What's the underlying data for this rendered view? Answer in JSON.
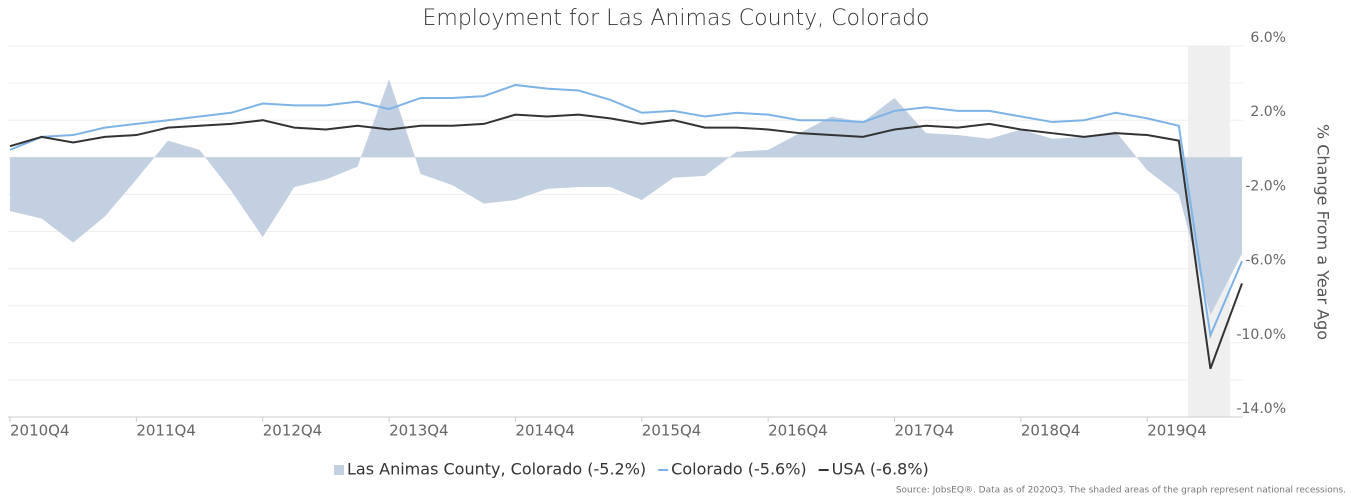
{
  "chart_data": {
    "type": "line",
    "title": "Employment for Las Animas County, Colorado",
    "y_axis_label": "% Change From a Year Ago",
    "source": "Source: JobsEQ®. Data as of 2020Q3. The shaded areas of the graph represent national recessions.",
    "categories": [
      "2010Q4",
      null,
      null,
      null,
      "2011Q4",
      null,
      null,
      null,
      "2012Q4",
      null,
      null,
      null,
      "2013Q4",
      null,
      null,
      null,
      "2014Q4",
      null,
      null,
      null,
      "2015Q4",
      null,
      null,
      null,
      "2016Q4",
      null,
      null,
      null,
      "2017Q4",
      null,
      null,
      null,
      "2018Q4",
      null,
      null,
      null,
      "2019Q4",
      null,
      null,
      null
    ],
    "ylim": [
      -14,
      6
    ],
    "yticks": [
      {
        "value": 6,
        "label": "6.0%"
      },
      {
        "value": 2,
        "label": "2.0%"
      },
      {
        "value": -2,
        "label": "-2.0%"
      },
      {
        "value": -6,
        "label": "-6.0%"
      },
      {
        "value": -10,
        "label": "-10.0%"
      },
      {
        "value": -14,
        "label": "-14.0%"
      }
    ],
    "minor_yticks": [
      4,
      0,
      -4,
      -8,
      -12
    ],
    "grid": true,
    "legend": "bottom",
    "series": [
      {
        "name": "Las Animas County, Colorado (-5.2%)",
        "color": "#c3d0e1",
        "style": "area",
        "values": [
          -2.9,
          -3.3,
          -4.6,
          -3.2,
          -1.2,
          0.9,
          0.4,
          -1.8,
          -4.3,
          -1.6,
          -1.2,
          -0.5,
          4.2,
          -0.9,
          -1.5,
          -2.5,
          -2.3,
          -1.7,
          -1.6,
          -1.6,
          -2.3,
          -1.1,
          -1.0,
          0.3,
          0.4,
          1.3,
          2.2,
          1.9,
          3.2,
          1.3,
          1.2,
          1.0,
          1.5,
          1.0,
          1.1,
          1.4,
          -0.7,
          -2.0,
          -8.5,
          -5.2
        ]
      },
      {
        "name": "Colorado (-5.6%)",
        "color": "#7db3e6",
        "style": "line",
        "values": [
          0.4,
          1.1,
          1.2,
          1.6,
          1.8,
          2.0,
          2.2,
          2.4,
          2.9,
          2.8,
          2.8,
          3.0,
          2.6,
          3.2,
          3.2,
          3.3,
          3.9,
          3.7,
          3.6,
          3.1,
          2.4,
          2.5,
          2.2,
          2.4,
          2.3,
          2.0,
          2.0,
          1.9,
          2.5,
          2.7,
          2.5,
          2.5,
          2.2,
          1.9,
          2.0,
          2.4,
          2.1,
          1.7,
          -9.6,
          -5.6
        ]
      },
      {
        "name": "USA (-6.8%)",
        "color": "#333333",
        "style": "line",
        "values": [
          0.6,
          1.1,
          0.8,
          1.1,
          1.2,
          1.6,
          1.7,
          1.8,
          2.0,
          1.6,
          1.5,
          1.7,
          1.5,
          1.7,
          1.7,
          1.8,
          2.3,
          2.2,
          2.3,
          2.1,
          1.8,
          2.0,
          1.6,
          1.6,
          1.5,
          1.3,
          1.2,
          1.1,
          1.5,
          1.7,
          1.6,
          1.8,
          1.5,
          1.3,
          1.1,
          1.3,
          1.2,
          0.9,
          -11.4,
          -6.8
        ]
      }
    ]
  }
}
